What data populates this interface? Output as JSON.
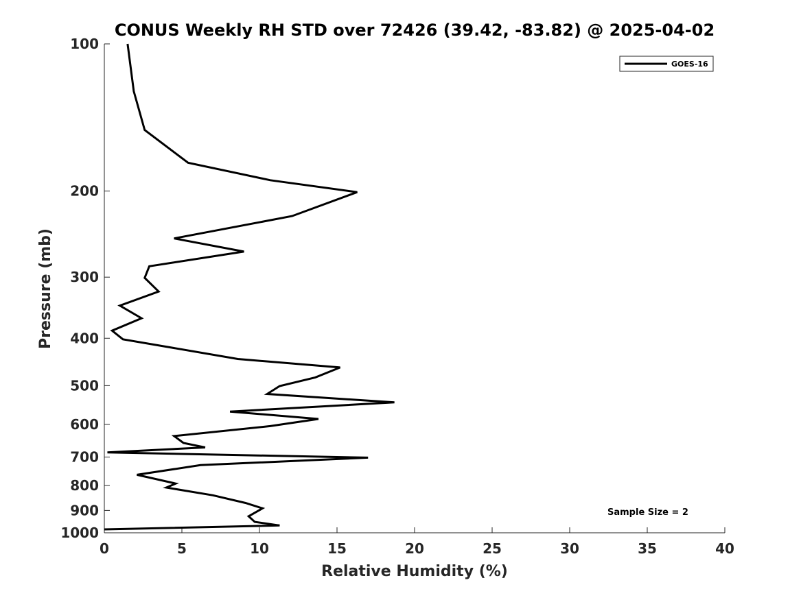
{
  "chart_data": {
    "type": "line",
    "title": "CONUS Weekly RH STD over 72426 (39.42, -83.82) @ 2025-04-02",
    "xlabel": "Relative Humidity (%)",
    "ylabel": "Pressure (mb)",
    "xlim": [
      0,
      40
    ],
    "ylim": [
      100,
      1000
    ],
    "y_scale": "log",
    "y_reversed": true,
    "grid": false,
    "x_ticks": [
      0,
      5,
      10,
      15,
      20,
      25,
      30,
      35,
      40
    ],
    "y_ticks": [
      100,
      200,
      300,
      400,
      500,
      600,
      700,
      800,
      900,
      1000
    ],
    "legend": {
      "position": "top-right",
      "entries": [
        "GOES-16"
      ]
    },
    "annotation": "Sample Size = 2",
    "series": [
      {
        "name": "GOES-16",
        "color": "#000000",
        "points": [
          [
            1.5,
            100
          ],
          [
            1.9,
            125
          ],
          [
            2.6,
            150
          ],
          [
            5.4,
            175
          ],
          [
            10.7,
            190
          ],
          [
            16.3,
            201
          ],
          [
            12.1,
            225
          ],
          [
            4.5,
            250
          ],
          [
            9.0,
            266
          ],
          [
            2.9,
            285
          ],
          [
            2.6,
            301
          ],
          [
            3.5,
            321
          ],
          [
            1.0,
            343
          ],
          [
            2.4,
            364
          ],
          [
            0.5,
            386
          ],
          [
            1.2,
            402
          ],
          [
            8.6,
            441
          ],
          [
            15.2,
            459
          ],
          [
            13.6,
            481
          ],
          [
            11.3,
            501
          ],
          [
            10.5,
            520
          ],
          [
            18.7,
            541
          ],
          [
            8.1,
            565
          ],
          [
            13.8,
            585
          ],
          [
            10.7,
            605
          ],
          [
            4.5,
            634
          ],
          [
            5.1,
            655
          ],
          [
            6.5,
            669
          ],
          [
            0.2,
            685
          ],
          [
            17.0,
            702
          ],
          [
            6.2,
            727
          ],
          [
            2.1,
            761
          ],
          [
            4.6,
            793
          ],
          [
            4.0,
            808
          ],
          [
            7.0,
            838
          ],
          [
            9.1,
            869
          ],
          [
            10.2,
            891
          ],
          [
            9.3,
            925
          ],
          [
            9.7,
            950
          ],
          [
            11.3,
            966
          ],
          [
            0.0,
            984
          ]
        ]
      }
    ]
  }
}
